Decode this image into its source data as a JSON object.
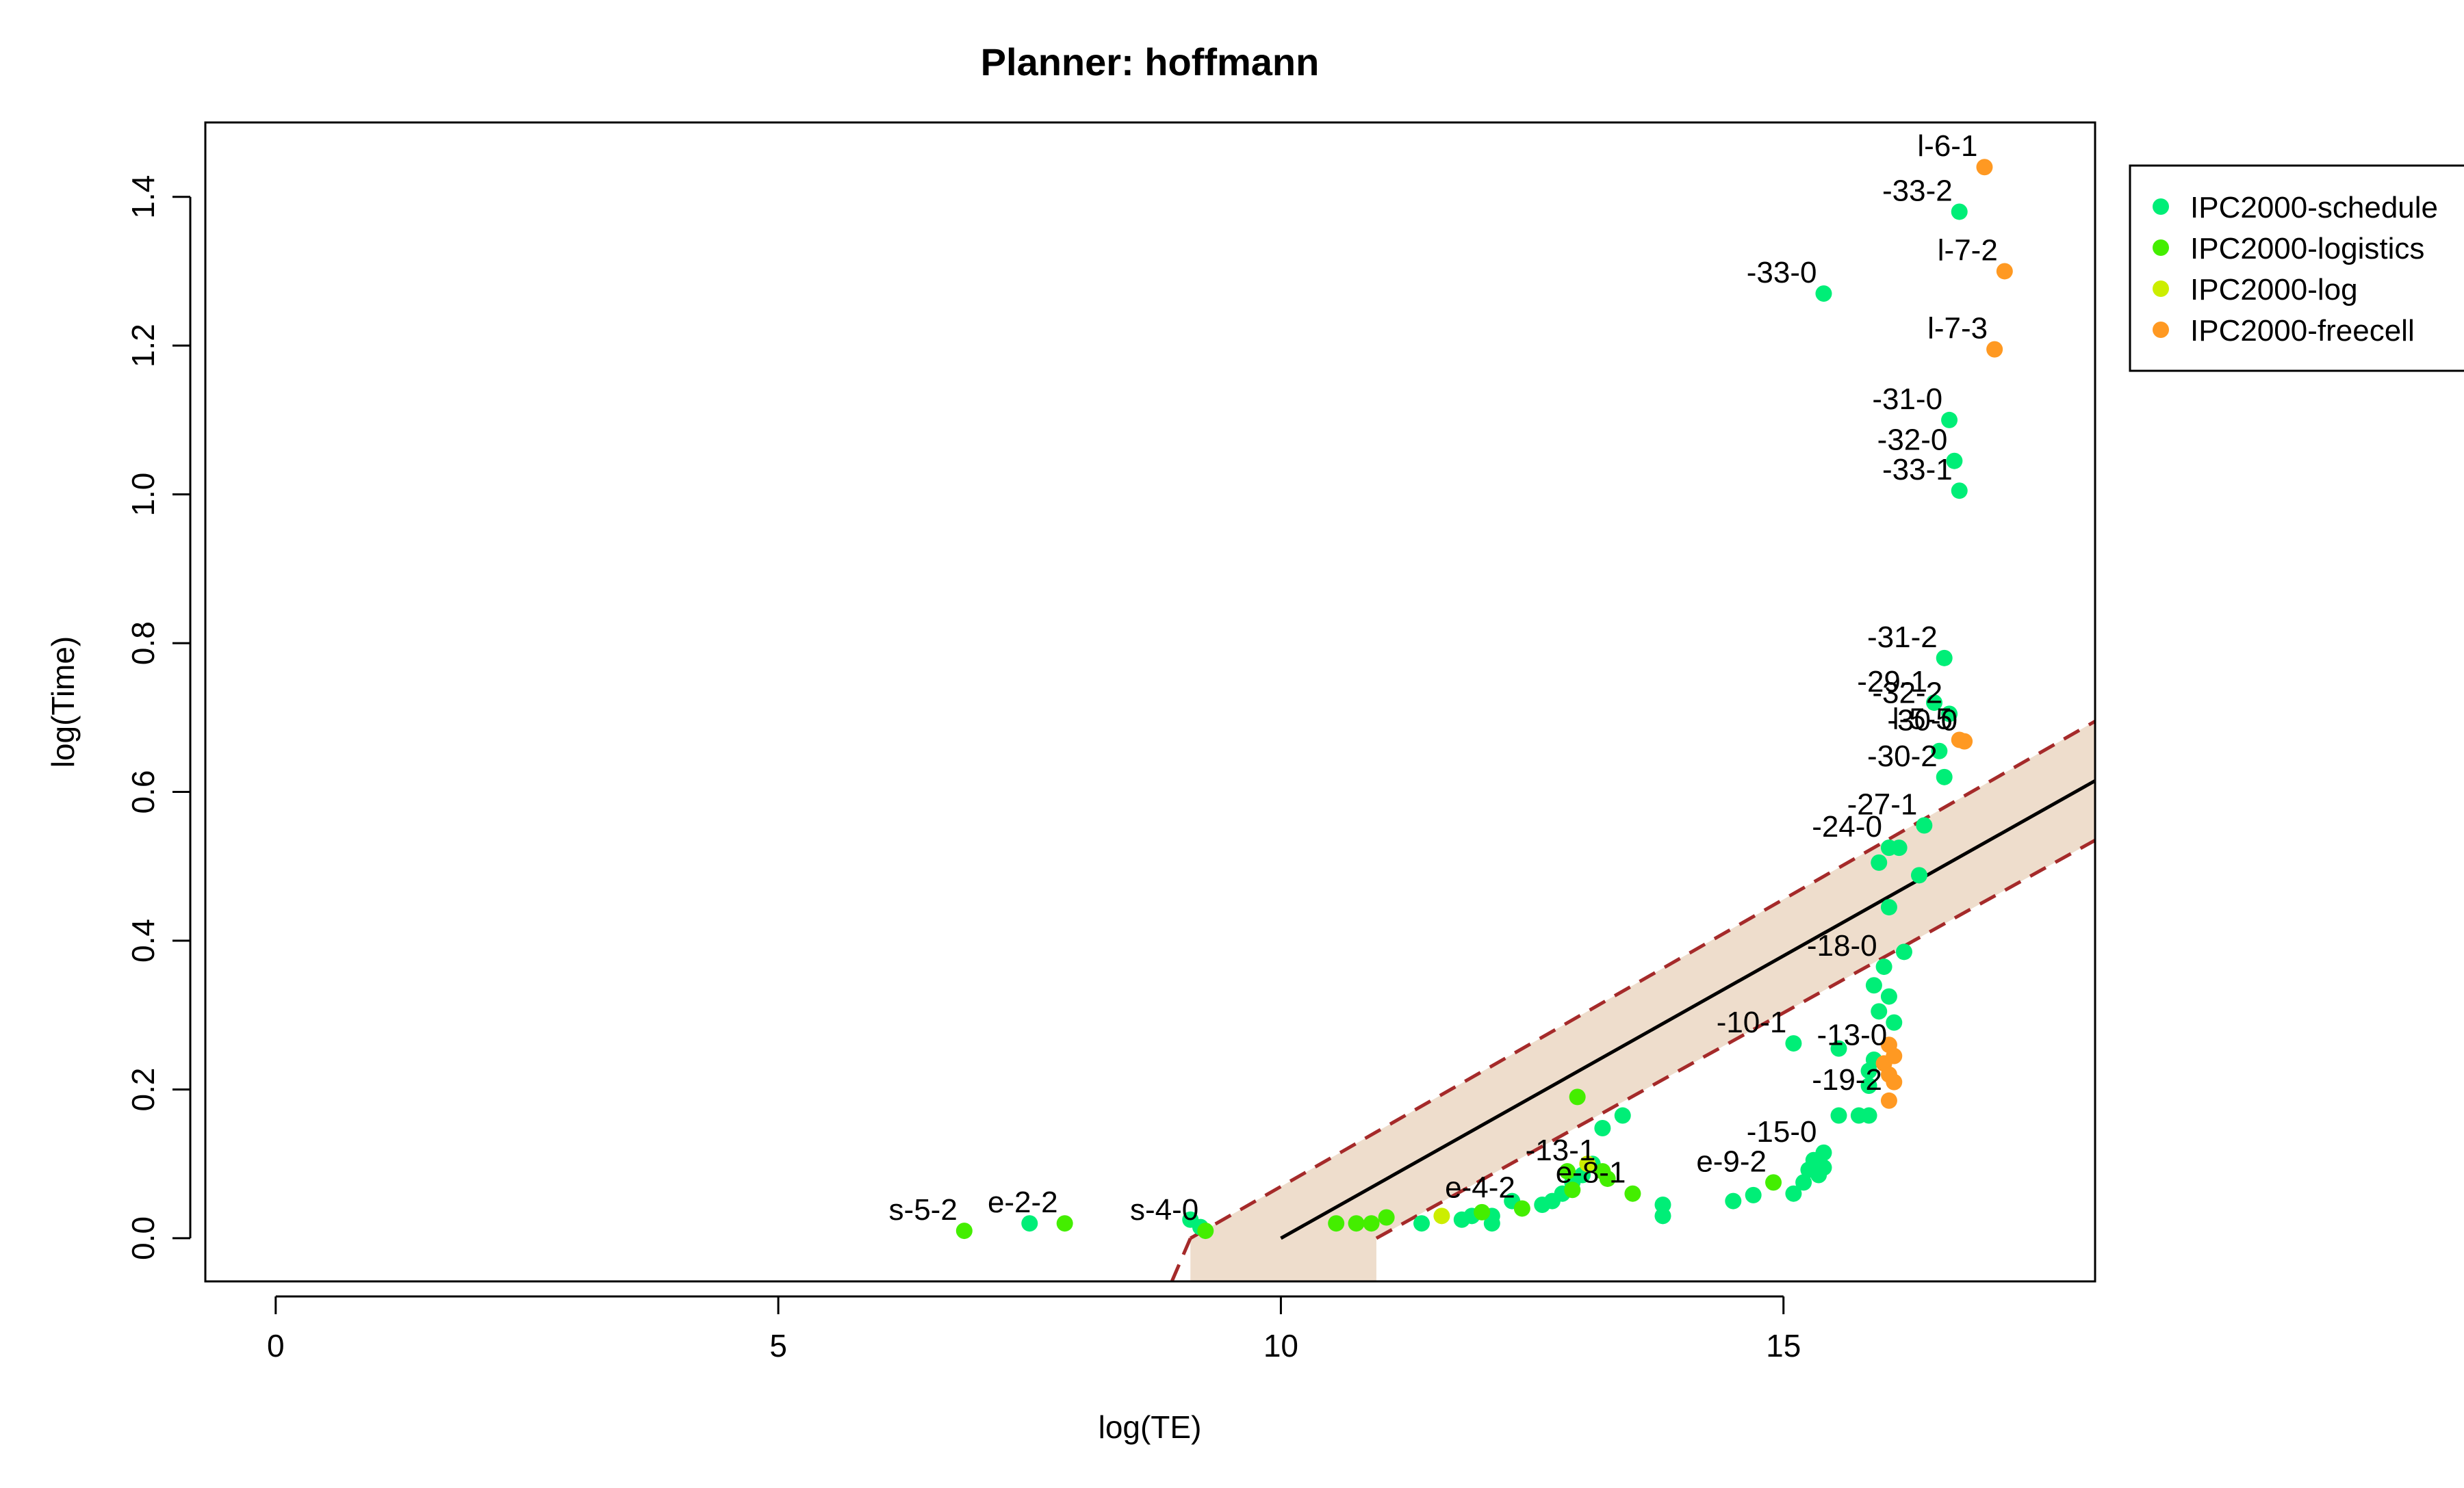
{
  "chart_data": {
    "type": "scatter",
    "title": "Planner: hoffmann",
    "xlabel": "log(TE)",
    "ylabel": "log(Time)",
    "xlim": [
      -0.7,
      18.1
    ],
    "ylim": [
      -0.058,
      1.5
    ],
    "x_ticks": [
      "0",
      "5",
      "10",
      "15"
    ],
    "y_ticks": [
      "0.0",
      "0.2",
      "0.4",
      "0.6",
      "0.8",
      "1.0",
      "1.2",
      "1.4"
    ],
    "grid": false,
    "legend_position": "right",
    "fit_line": {
      "x": [
        10.0,
        18.1
      ],
      "y": [
        0.0,
        0.615
      ]
    },
    "band": {
      "upper": {
        "x": [
          9.1,
          18.1
        ],
        "y": [
          0.0,
          0.695
        ]
      },
      "lower": {
        "x": [
          10.95,
          18.1
        ],
        "y": [
          0.0,
          0.535
        ]
      },
      "line_color": "#a52a2a",
      "fill_color": "#eeddcc"
    },
    "series": [
      {
        "name": "IPC2000-schedule",
        "color": "#00ee77",
        "points": [
          {
            "x": 15.4,
            "y": 1.27,
            "label": "-33-0"
          },
          {
            "x": 16.75,
            "y": 1.38,
            "label": "-33-2"
          },
          {
            "x": 16.65,
            "y": 1.1,
            "label": "-31-0"
          },
          {
            "x": 16.7,
            "y": 1.045,
            "label": "-32-0"
          },
          {
            "x": 16.75,
            "y": 1.005,
            "label": "-33-1"
          },
          {
            "x": 16.6,
            "y": 0.78,
            "label": "-31-2"
          },
          {
            "x": 16.5,
            "y": 0.72,
            "label": "-29-1"
          },
          {
            "x": 16.65,
            "y": 0.705,
            "label": "-32-2"
          },
          {
            "x": 16.55,
            "y": 0.655,
            "label": ""
          },
          {
            "x": 16.6,
            "y": 0.62,
            "label": "-30-2"
          },
          {
            "x": 16.4,
            "y": 0.555,
            "label": "-27-1"
          },
          {
            "x": 16.05,
            "y": 0.525,
            "label": "-24-0"
          },
          {
            "x": 16.15,
            "y": 0.525,
            "label": ""
          },
          {
            "x": 15.95,
            "y": 0.505,
            "label": ""
          },
          {
            "x": 16.35,
            "y": 0.488,
            "label": ""
          },
          {
            "x": 16.05,
            "y": 0.445,
            "label": ""
          },
          {
            "x": 16.2,
            "y": 0.385,
            "label": ""
          },
          {
            "x": 16.0,
            "y": 0.365,
            "label": "-18-0"
          },
          {
            "x": 15.9,
            "y": 0.34,
            "label": ""
          },
          {
            "x": 16.05,
            "y": 0.325,
            "label": ""
          },
          {
            "x": 15.95,
            "y": 0.305,
            "label": ""
          },
          {
            "x": 16.1,
            "y": 0.29,
            "label": ""
          },
          {
            "x": 15.1,
            "y": 0.262,
            "label": "-10-1"
          },
          {
            "x": 15.55,
            "y": 0.255,
            "label": ""
          },
          {
            "x": 15.9,
            "y": 0.24,
            "label": ""
          },
          {
            "x": 15.85,
            "y": 0.225,
            "label": ""
          },
          {
            "x": 15.85,
            "y": 0.205,
            "label": ""
          },
          {
            "x": 15.55,
            "y": 0.165,
            "label": ""
          },
          {
            "x": 15.75,
            "y": 0.165,
            "label": ""
          },
          {
            "x": 15.85,
            "y": 0.165,
            "label": ""
          },
          {
            "x": 13.4,
            "y": 0.165,
            "label": ""
          },
          {
            "x": 13.2,
            "y": 0.148,
            "label": ""
          },
          {
            "x": 15.4,
            "y": 0.115,
            "label": "-15-0"
          },
          {
            "x": 15.3,
            "y": 0.105,
            "label": ""
          },
          {
            "x": 15.4,
            "y": 0.095,
            "label": ""
          },
          {
            "x": 15.25,
            "y": 0.092,
            "label": ""
          },
          {
            "x": 15.35,
            "y": 0.085,
            "label": ""
          },
          {
            "x": 15.2,
            "y": 0.075,
            "label": ""
          },
          {
            "x": 15.1,
            "y": 0.06,
            "label": ""
          },
          {
            "x": 14.7,
            "y": 0.058,
            "label": ""
          },
          {
            "x": 14.5,
            "y": 0.05,
            "label": ""
          },
          {
            "x": 13.8,
            "y": 0.045,
            "label": ""
          },
          {
            "x": 13.8,
            "y": 0.03,
            "label": ""
          },
          {
            "x": 12.8,
            "y": 0.06,
            "label": ""
          },
          {
            "x": 12.9,
            "y": 0.075,
            "label": ""
          },
          {
            "x": 13.0,
            "y": 0.085,
            "label": ""
          },
          {
            "x": 13.1,
            "y": 0.1,
            "label": ""
          },
          {
            "x": 12.6,
            "y": 0.045,
            "label": ""
          },
          {
            "x": 12.7,
            "y": 0.05,
            "label": ""
          },
          {
            "x": 12.3,
            "y": 0.05,
            "label": ""
          },
          {
            "x": 12.1,
            "y": 0.03,
            "label": ""
          },
          {
            "x": 12.1,
            "y": 0.02,
            "label": ""
          },
          {
            "x": 11.9,
            "y": 0.03,
            "label": ""
          },
          {
            "x": 11.8,
            "y": 0.025,
            "label": ""
          },
          {
            "x": 11.4,
            "y": 0.02,
            "label": ""
          },
          {
            "x": 9.1,
            "y": 0.025,
            "label": ""
          },
          {
            "x": 9.2,
            "y": 0.015,
            "label": ""
          },
          {
            "x": 7.5,
            "y": 0.02,
            "label": ""
          }
        ]
      },
      {
        "name": "IPC2000-logistics",
        "color": "#44ee00",
        "points": [
          {
            "x": 6.85,
            "y": 0.01,
            "label": "s-5-2"
          },
          {
            "x": 7.85,
            "y": 0.02,
            "label": "e-2-2"
          },
          {
            "x": 9.25,
            "y": 0.01,
            "label": "s-4-0"
          },
          {
            "x": 10.55,
            "y": 0.02,
            "label": ""
          },
          {
            "x": 10.75,
            "y": 0.02,
            "label": ""
          },
          {
            "x": 10.9,
            "y": 0.02,
            "label": ""
          },
          {
            "x": 11.05,
            "y": 0.028,
            "label": ""
          },
          {
            "x": 12.95,
            "y": 0.19,
            "label": ""
          },
          {
            "x": 12.85,
            "y": 0.09,
            "label": ""
          },
          {
            "x": 13.2,
            "y": 0.09,
            "label": "-13-1"
          },
          {
            "x": 13.25,
            "y": 0.08,
            "label": ""
          },
          {
            "x": 12.9,
            "y": 0.065,
            "label": ""
          },
          {
            "x": 12.4,
            "y": 0.04,
            "label": "e-4-2"
          },
          {
            "x": 12.0,
            "y": 0.035,
            "label": ""
          },
          {
            "x": 13.5,
            "y": 0.06,
            "label": "e-8-1"
          },
          {
            "x": 14.9,
            "y": 0.075,
            "label": "e-9-2"
          }
        ]
      },
      {
        "name": "IPC2000-log",
        "color": "#ccee00",
        "points": [
          {
            "x": 11.6,
            "y": 0.03,
            "label": ""
          },
          {
            "x": 13.05,
            "y": 0.1,
            "label": ""
          }
        ]
      },
      {
        "name": "IPC2000-freecell",
        "color": "#ff9922",
        "points": [
          {
            "x": 17.0,
            "y": 1.44,
            "label": "l-6-1"
          },
          {
            "x": 17.2,
            "y": 1.3,
            "label": "l-7-2"
          },
          {
            "x": 17.1,
            "y": 1.195,
            "label": "l-7-3"
          },
          {
            "x": 16.75,
            "y": 0.67,
            "label": "l-5-5"
          },
          {
            "x": 16.8,
            "y": 0.668,
            "label": "-30-0"
          },
          {
            "x": 16.05,
            "y": 0.26,
            "label": ""
          },
          {
            "x": 16.1,
            "y": 0.245,
            "label": "-13-0"
          },
          {
            "x": 16.0,
            "y": 0.235,
            "label": ""
          },
          {
            "x": 16.05,
            "y": 0.22,
            "label": ""
          },
          {
            "x": 16.1,
            "y": 0.21,
            "label": ""
          },
          {
            "x": 16.05,
            "y": 0.185,
            "label": "-19-2"
          }
        ]
      }
    ]
  }
}
